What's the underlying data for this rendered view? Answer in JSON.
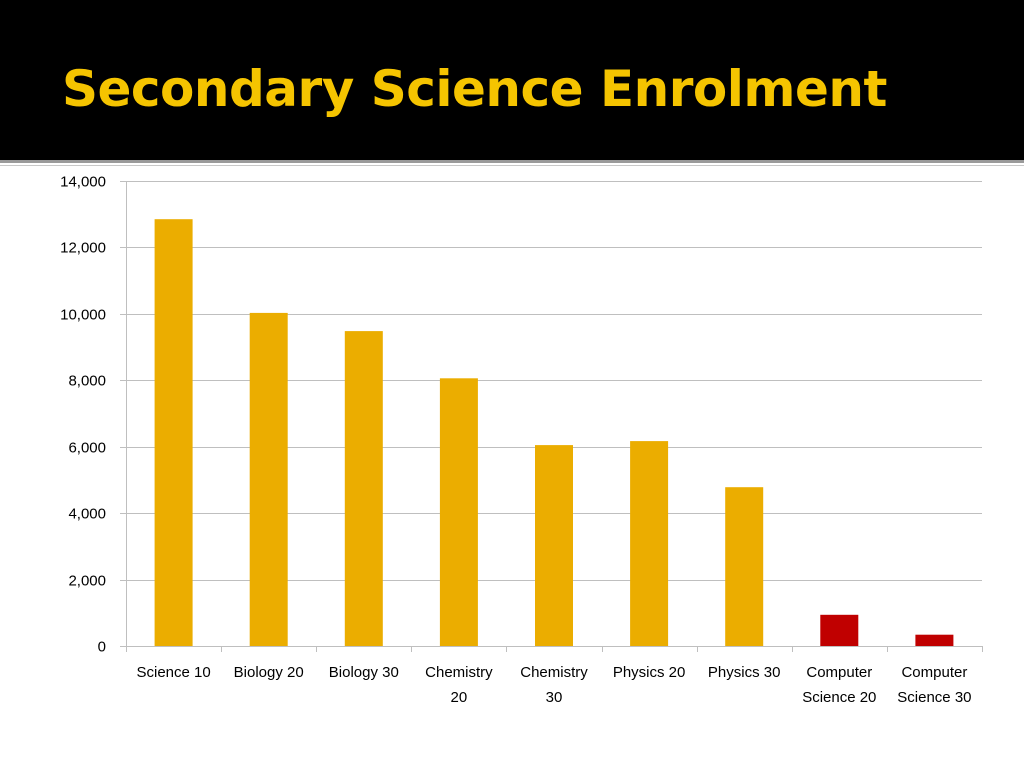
{
  "slide": {
    "title": "Secondary Science Enrolment"
  },
  "colors": {
    "header_background": "#000000",
    "title": "#f5c400",
    "science_bar": "#ebad00",
    "computer_science_bar": "#c00000",
    "gridline": "#bfbfbf"
  },
  "chart_data": {
    "type": "bar",
    "title": "",
    "xlabel": "",
    "ylabel": "",
    "categories": [
      [
        "Science 10"
      ],
      [
        "Biology 20"
      ],
      [
        "Biology 30"
      ],
      [
        "Chemistry",
        "20"
      ],
      [
        "Chemistry",
        "30"
      ],
      [
        "Physics 20"
      ],
      [
        "Physics 30"
      ],
      [
        "Computer",
        "Science 20"
      ],
      [
        "Computer",
        "Science 30"
      ]
    ],
    "values": [
      12850,
      10030,
      9480,
      8060,
      6050,
      6170,
      4780,
      940,
      340
    ],
    "bar_colors": [
      "#ebad00",
      "#ebad00",
      "#ebad00",
      "#ebad00",
      "#ebad00",
      "#ebad00",
      "#ebad00",
      "#c00000",
      "#c00000"
    ],
    "ylim": [
      0,
      14000
    ],
    "yticks": [
      0,
      2000,
      4000,
      6000,
      8000,
      10000,
      12000,
      14000
    ],
    "ytick_labels": [
      "0",
      "2,000",
      "4,000",
      "6,000",
      "8,000",
      "10,000",
      "12,000",
      "14,000"
    ],
    "grid": true,
    "legend": "none"
  }
}
